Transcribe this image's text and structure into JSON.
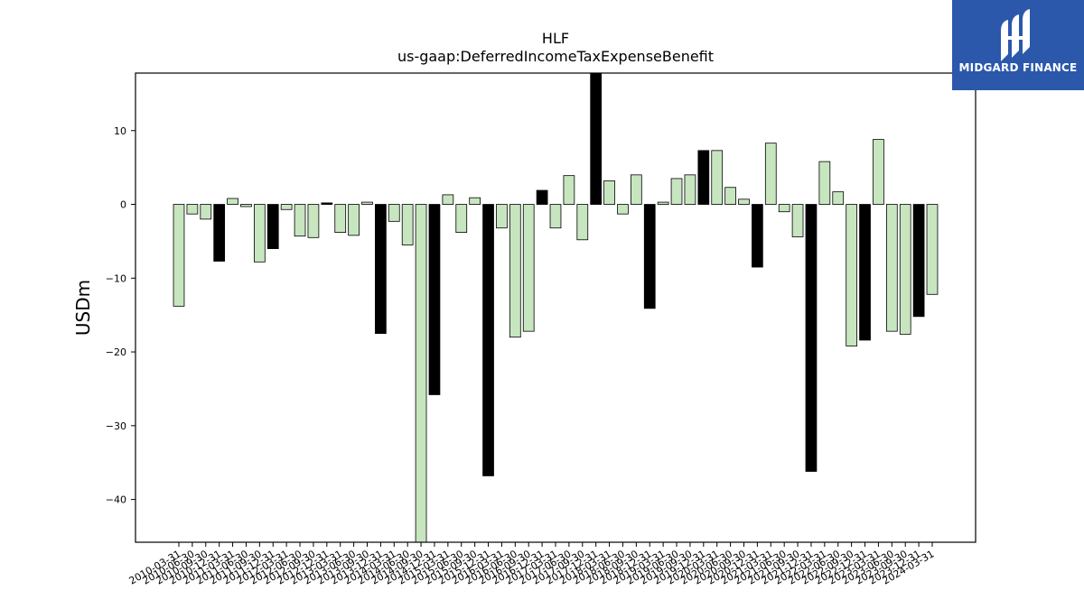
{
  "chart_data": {
    "type": "bar",
    "title": "HLF",
    "subtitle": "us-gaap:DeferredIncomeTaxExpenseBenefit",
    "xlabel": "",
    "ylabel": "USDm",
    "ylim": [
      -45.8,
      17.8
    ],
    "yticks": [
      10,
      0,
      -10,
      -20,
      -30,
      -40
    ],
    "grid": false,
    "colors": {
      "quarterly": "#c7e6c0",
      "annual": "#000000",
      "edge": "#000000"
    },
    "categories": [
      "2010-03-31",
      "2010-06-30",
      "2010-09-30",
      "2010-12-31",
      "2011-03-31",
      "2011-06-30",
      "2011-09-30",
      "2011-12-31",
      "2012-03-31",
      "2012-06-30",
      "2012-09-30",
      "2012-12-31",
      "2013-03-31",
      "2013-06-30",
      "2013-09-30",
      "2013-12-31",
      "2014-03-31",
      "2014-06-30",
      "2014-09-30",
      "2014-12-31",
      "2015-03-31",
      "2015-06-30",
      "2015-09-30",
      "2015-12-31",
      "2016-03-31",
      "2016-06-30",
      "2016-09-30",
      "2016-12-31",
      "2017-03-31",
      "2017-06-30",
      "2017-09-30",
      "2017-12-31",
      "2018-03-31",
      "2018-06-30",
      "2018-09-30",
      "2018-12-31",
      "2019-03-31",
      "2019-06-30",
      "2019-09-30",
      "2019-12-31",
      "2020-03-31",
      "2020-06-30",
      "2020-09-30",
      "2020-12-31",
      "2021-03-31",
      "2021-06-30",
      "2021-09-30",
      "2021-12-31",
      "2022-03-31",
      "2022-06-30",
      "2022-09-30",
      "2022-12-31",
      "2023-03-31",
      "2023-06-30",
      "2023-09-30",
      "2023-12-31",
      "2024-03-31"
    ],
    "values": [
      -13.8,
      -1.3,
      -2.0,
      -7.7,
      0.8,
      -0.3,
      -7.8,
      -6.0,
      -0.7,
      -4.3,
      -4.5,
      0.2,
      -3.8,
      -4.2,
      0.3,
      -17.5,
      -2.3,
      -5.5,
      -46.0,
      -25.8,
      1.3,
      -3.8,
      0.9,
      -36.8,
      -3.2,
      -18.0,
      -17.2,
      1.9,
      -3.2,
      3.9,
      -4.8,
      17.8,
      3.2,
      -1.3,
      4.0,
      -14.1,
      0.3,
      3.5,
      4.0,
      7.3,
      7.3,
      2.3,
      0.7,
      -8.5,
      8.3,
      -1.0,
      -4.4,
      -36.2,
      5.8,
      1.7,
      -19.2,
      -18.4,
      8.8,
      -17.2,
      -17.6,
      -15.2,
      -12.2
    ],
    "annual": [
      false,
      false,
      false,
      true,
      false,
      false,
      false,
      true,
      false,
      false,
      false,
      true,
      false,
      false,
      false,
      true,
      false,
      false,
      false,
      true,
      false,
      false,
      false,
      true,
      false,
      false,
      false,
      true,
      false,
      false,
      false,
      true,
      false,
      false,
      false,
      true,
      false,
      false,
      false,
      true,
      false,
      false,
      false,
      true,
      false,
      false,
      false,
      true,
      false,
      false,
      false,
      true,
      false,
      false,
      false,
      true,
      false
    ]
  },
  "logo": {
    "text": "MIDGARD FINANCE",
    "icon": "midgard-logo-icon"
  }
}
